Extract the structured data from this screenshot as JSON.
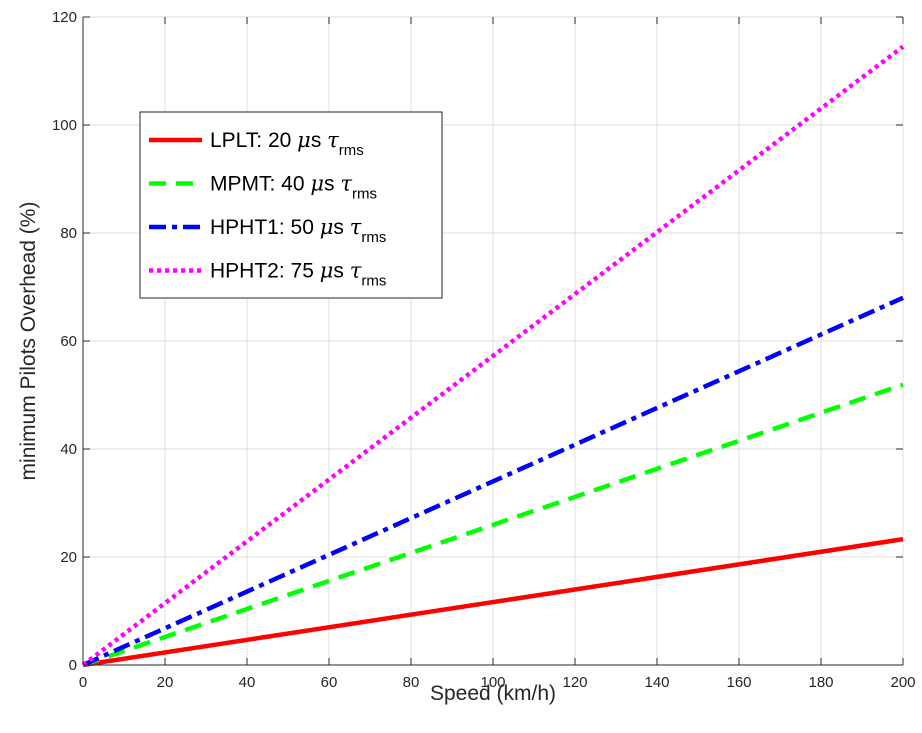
{
  "chart_data": {
    "type": "line",
    "xlabel": "Speed (km/h)",
    "ylabel": "minimum Pilots Overhead (%)",
    "xlim": [
      0,
      200
    ],
    "ylim": [
      0,
      120
    ],
    "xticks": [
      0,
      20,
      40,
      60,
      80,
      100,
      120,
      140,
      160,
      180,
      200
    ],
    "yticks": [
      0,
      20,
      40,
      60,
      80,
      100,
      120
    ],
    "grid": true,
    "legend_position": "upper-left",
    "series": [
      {
        "legend": {
          "prefix": "LPLT: 20 ",
          "mu": "μ",
          "mid": "s ",
          "tau": "τ",
          "sub": "rms"
        },
        "color": "#ff0000",
        "style": "solid",
        "x": [
          0,
          200
        ],
        "y": [
          0,
          23.3
        ]
      },
      {
        "legend": {
          "prefix": "MPMT: 40 ",
          "mu": "μ",
          "mid": "s ",
          "tau": "τ",
          "sub": "rms"
        },
        "color": "#00ff00",
        "style": "dashed",
        "x": [
          0,
          200
        ],
        "y": [
          0,
          51.9
        ]
      },
      {
        "legend": {
          "prefix": "HPHT1: 50 ",
          "mu": "μ",
          "mid": "s ",
          "tau": "τ",
          "sub": "rms"
        },
        "color": "#0000ff",
        "style": "dashdot",
        "x": [
          0,
          200
        ],
        "y": [
          0,
          68.0
        ]
      },
      {
        "legend": {
          "prefix": "HPHT2: 75 ",
          "mu": "μ",
          "mid": "s ",
          "tau": "τ",
          "sub": "rms"
        },
        "color": "#ff00ff",
        "style": "dotted",
        "x": [
          0,
          200
        ],
        "y": [
          0,
          114.5
        ]
      }
    ]
  }
}
